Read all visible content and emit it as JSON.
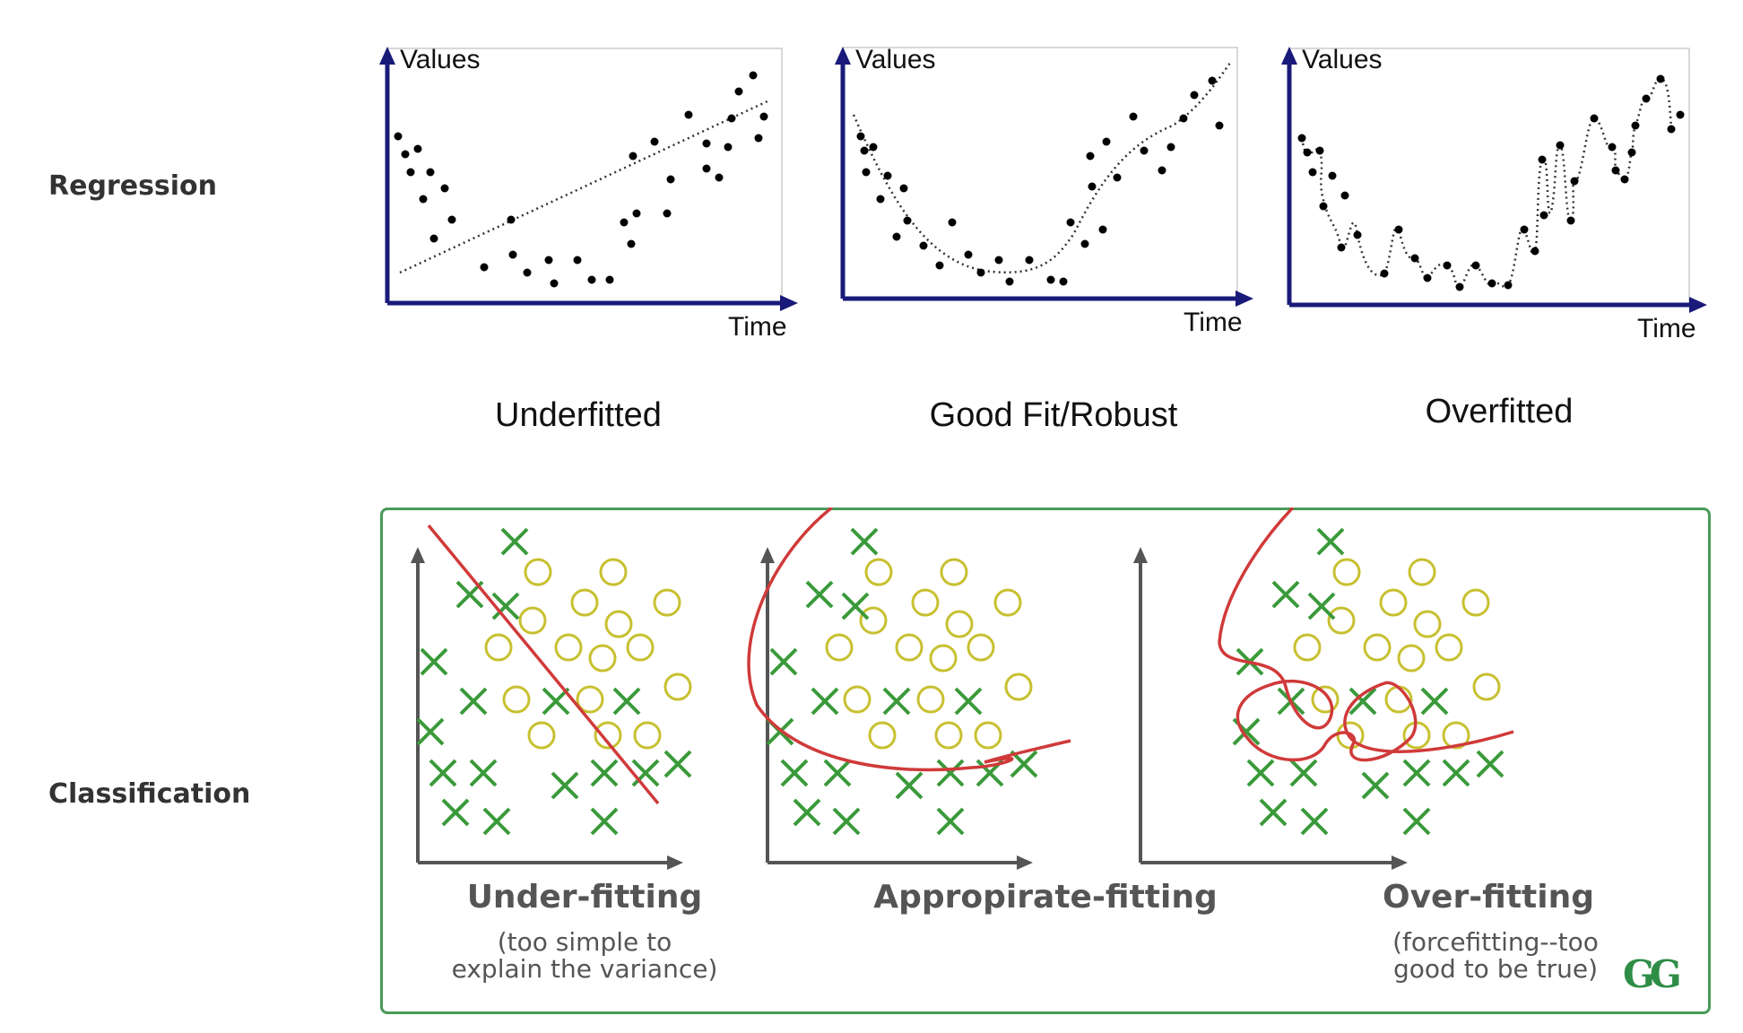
{
  "rows": {
    "regression": "Regression",
    "classification": "Classification"
  },
  "regression_panels": [
    {
      "ylabel": "Values",
      "xlabel": "Time",
      "caption": "Underfitted",
      "fit": "line"
    },
    {
      "ylabel": "Values",
      "xlabel": "Time",
      "caption": "Good Fit/Robust",
      "fit": "curve"
    },
    {
      "ylabel": "Values",
      "xlabel": "Time",
      "caption": "Overfitted",
      "fit": "wiggle"
    }
  ],
  "classification_panels": [
    {
      "title": "Under-fitting",
      "subtitle": [
        "(too simple to",
        "explain the variance)"
      ],
      "boundary": "line"
    },
    {
      "title": "Appropirate-fitting",
      "subtitle": [],
      "boundary": "curve"
    },
    {
      "title": "Over-fitting",
      "subtitle": [
        "(forcefitting--too",
        "good to be true)"
      ],
      "boundary": "complex"
    }
  ],
  "logo": "GG",
  "colors": {
    "axis_regression": "#1a1a7a",
    "axis_classification": "#555555",
    "cross": "#3a9a3a",
    "circle": "#c8c030",
    "boundary": "#d03a3a",
    "frame": "#4a9a5a"
  },
  "icons": {
    "class_a_marker": "cross-icon",
    "class_b_marker": "circle-icon"
  }
}
